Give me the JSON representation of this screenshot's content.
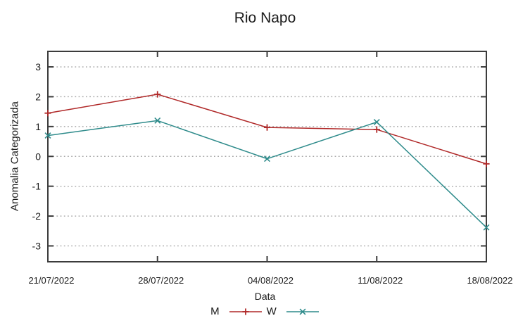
{
  "chart_data": {
    "type": "line",
    "title": "Rio Napo",
    "xlabel": "Data",
    "ylabel": "Anomalia Categorizada",
    "categories": [
      "21/07/2022",
      "28/07/2022",
      "04/08/2022",
      "11/08/2022",
      "18/08/2022"
    ],
    "series": [
      {
        "name": "M",
        "marker": "plus",
        "color": "#b02828",
        "values": [
          1.45,
          2.08,
          0.97,
          0.9,
          -0.25
        ]
      },
      {
        "name": "W",
        "marker": "cross",
        "color": "#2e8b8b",
        "values": [
          0.7,
          1.2,
          -0.08,
          1.15,
          -2.38
        ]
      }
    ],
    "yticks": [
      3,
      2,
      1,
      0,
      -1,
      -2,
      -3
    ],
    "ylim": [
      -3.5,
      3.5
    ],
    "grid": "horizontal-dotted",
    "legend_position": "bottom-center",
    "colors": {
      "frame": "#3c3c3c",
      "grid": "#a6a6a6",
      "text": "#1a1a1a",
      "background": "#ffffff"
    }
  }
}
